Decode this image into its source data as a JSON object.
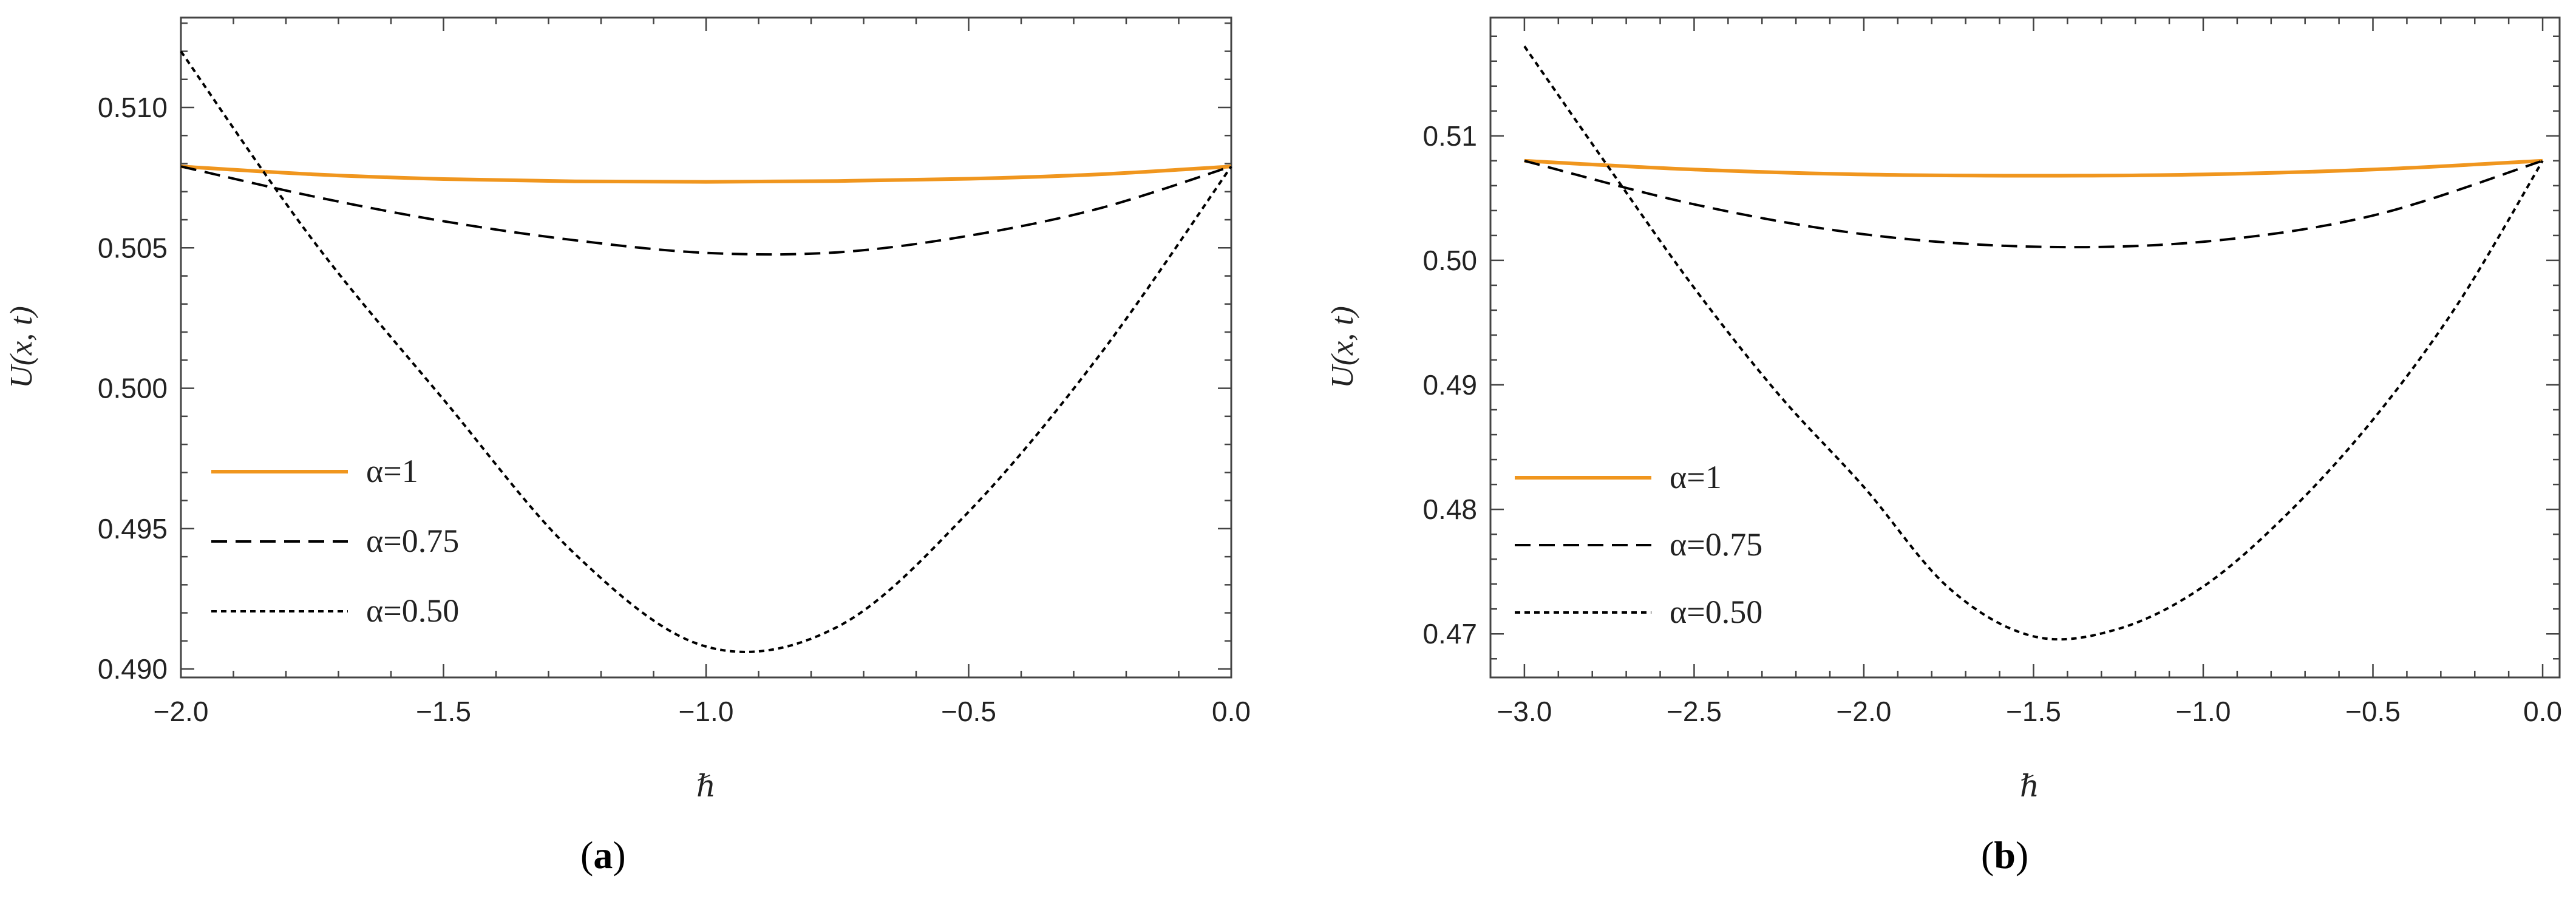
{
  "figure": {
    "colors": {
      "orange": "#f0961e",
      "axis": "#444444",
      "ink": "#000000"
    }
  },
  "chart_data": [
    {
      "type": "line",
      "panel_label": "a",
      "title": "",
      "xlabel": "ℏ",
      "ylabel": "U(x, t)",
      "xlim": [
        -2.0,
        0.0
      ],
      "ylim": [
        0.4897,
        0.5132
      ],
      "xticks": [
        "-2.0",
        "-1.5",
        "-1.0",
        "-0.5",
        "0.0"
      ],
      "xtick_values": [
        -2.0,
        -1.5,
        -1.0,
        -0.5,
        0.0
      ],
      "yticks": [
        "0.490",
        "0.495",
        "0.500",
        "0.505",
        "0.510"
      ],
      "ytick_values": [
        0.49,
        0.495,
        0.5,
        0.505,
        0.51
      ],
      "legend_position": "bottom-left",
      "series": [
        {
          "name": "α=1",
          "style": "solid",
          "color": "#f0961e",
          "x": [
            -2.0,
            -1.75,
            -1.5,
            -1.25,
            -1.0,
            -0.75,
            -0.5,
            -0.25,
            0.0
          ],
          "y": [
            0.5079,
            0.50762,
            0.50745,
            0.50737,
            0.50735,
            0.50738,
            0.50746,
            0.50762,
            0.5079
          ]
        },
        {
          "name": "α=0.75",
          "style": "dashed",
          "color": "#000000",
          "x": [
            -2.0,
            -1.75,
            -1.5,
            -1.25,
            -1.0,
            -0.75,
            -0.5,
            -0.25,
            0.0
          ],
          "y": [
            0.5079,
            0.50684,
            0.50595,
            0.50527,
            0.50482,
            0.50484,
            0.50543,
            0.50641,
            0.5079
          ]
        },
        {
          "name": "α=0.50",
          "style": "dotted",
          "color": "#000000",
          "x": [
            -2.0,
            -1.75,
            -1.5,
            -1.25,
            -1.0,
            -0.75,
            -0.5,
            -0.25,
            0.0
          ],
          "y": [
            0.512,
            0.5053,
            0.4996,
            0.4941,
            0.4908,
            0.4915,
            0.4956,
            0.5012,
            0.5079
          ]
        }
      ]
    },
    {
      "type": "line",
      "panel_label": "b",
      "title": "",
      "xlabel": "ℏ",
      "ylabel": "U(x, t)",
      "xlim": [
        -3.1,
        0.05
      ],
      "ylim": [
        0.4665,
        0.5195
      ],
      "xticks": [
        "-3.0",
        "-2.5",
        "-2.0",
        "-1.5",
        "-1.0",
        "-0.5",
        "0.0"
      ],
      "xtick_values": [
        -3.0,
        -2.5,
        -2.0,
        -1.5,
        -1.0,
        -0.5,
        0.0
      ],
      "yticks": [
        "0.47",
        "0.48",
        "0.49",
        "0.50",
        "0.51"
      ],
      "ytick_values": [
        0.47,
        0.48,
        0.49,
        0.5,
        0.51
      ],
      "legend_position": "bottom-left",
      "series": [
        {
          "name": "α=1",
          "style": "solid",
          "color": "#f0961e",
          "x": [
            -3.0,
            -2.5,
            -2.0,
            -1.5,
            -1.0,
            -0.5,
            0.0
          ],
          "y": [
            0.508,
            0.5073,
            0.5069,
            0.5068,
            0.5069,
            0.5073,
            0.508
          ]
        },
        {
          "name": "α=0.75",
          "style": "dashed",
          "color": "#000000",
          "x": [
            -3.0,
            -2.5,
            -2.0,
            -1.5,
            -1.0,
            -0.5,
            0.0
          ],
          "y": [
            0.508,
            0.5045,
            0.5021,
            0.5011,
            0.5015,
            0.5036,
            0.508
          ]
        },
        {
          "name": "α=0.50",
          "style": "dotted",
          "color": "#000000",
          "x": [
            -3.0,
            -2.75,
            -2.5,
            -2.25,
            -2.0,
            -1.75,
            -1.5,
            -1.25,
            -1.0,
            -0.75,
            -0.5,
            -0.25,
            0.0
          ],
          "y": [
            0.5172,
            0.5074,
            0.4978,
            0.4892,
            0.4818,
            0.4737,
            0.4698,
            0.4704,
            0.4738,
            0.4797,
            0.4872,
            0.4965,
            0.508
          ]
        }
      ]
    }
  ]
}
